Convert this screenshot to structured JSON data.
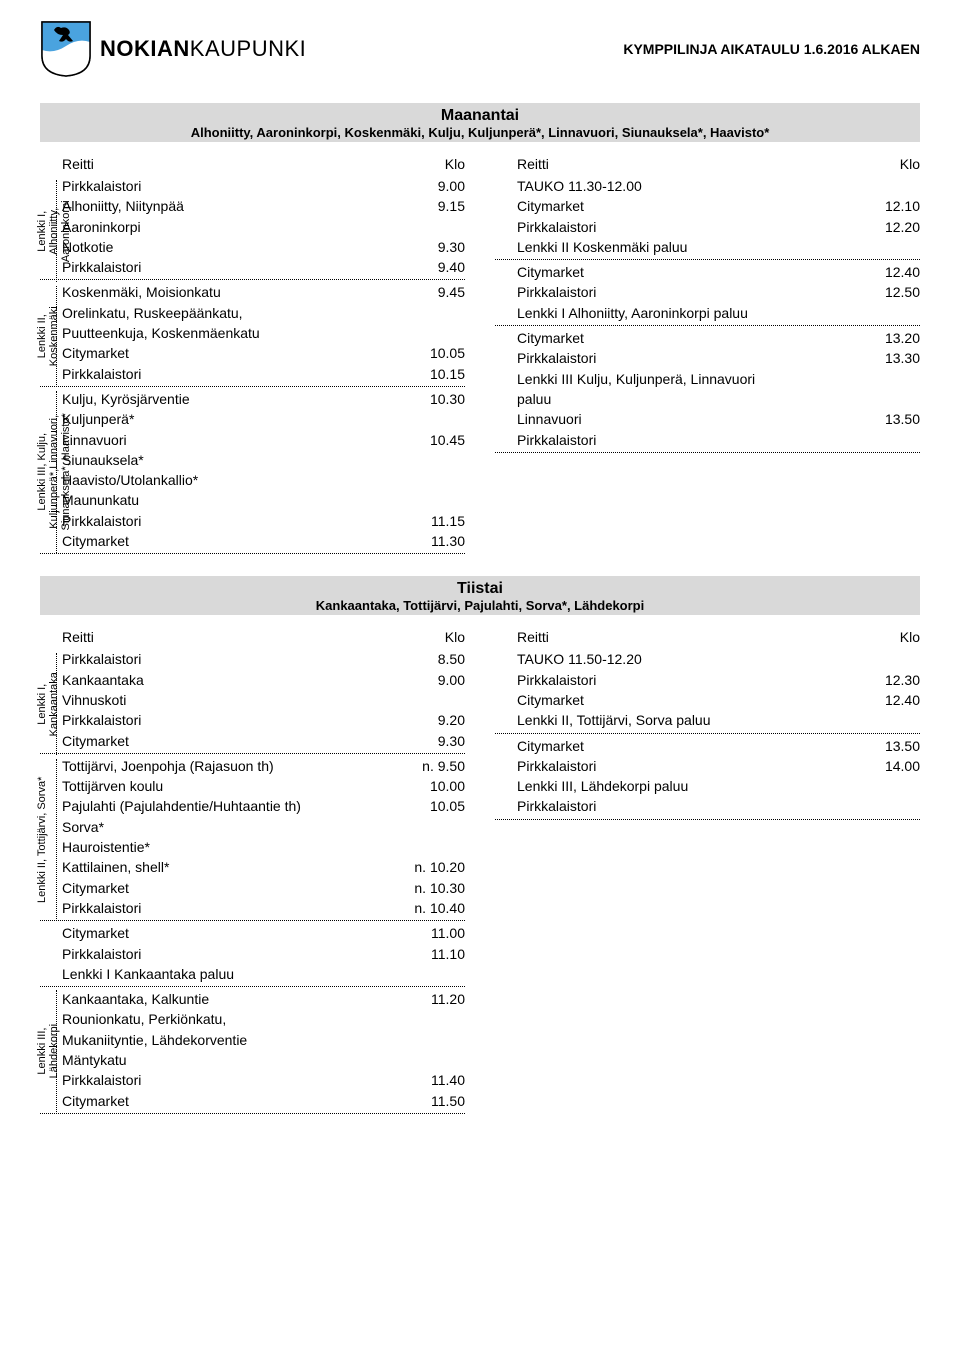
{
  "header": {
    "brand_strong": "NOKIAN",
    "brand_light": "KAUPUNKI",
    "right_text": "KYMPPILINJA AIKATAULU 1.6.2016 ALKAEN"
  },
  "days": [
    {
      "title": "Maanantai",
      "subtitle": "Alhoniitty, Aaroninkorpi, Koskenmäki, Kulju, Kuljunperä*, Linnavuori, Siunauksela*, Haavisto*",
      "left": {
        "col_hdr_l": "Reitti",
        "col_hdr_r": "Klo",
        "groups": [
          {
            "label_lines": [
              "Lenkki I,",
              "Alhoniitty,",
              "Aaroninkorpi"
            ],
            "rows": [
              {
                "s": "Pirkkalaistori",
                "t": "9.00"
              },
              {
                "s": "Alhoniitty, Niitynpää",
                "t": "9.15"
              },
              {
                "s": "Aaroninkorpi",
                "t": ""
              },
              {
                "s": "Notkotie",
                "t": "9.30"
              },
              {
                "s": "Pirkkalaistori",
                "t": "9.40"
              }
            ]
          },
          {
            "label_lines": [
              "Lenkki II,",
              "Koskenmäki"
            ],
            "rows": [
              {
                "s": "Koskenmäki, Moisionkatu",
                "t": "9.45"
              },
              {
                "s": "Orelinkatu, Ruskeepäänkatu,",
                "t": ""
              },
              {
                "s": "Puutteenkuja, Koskenmäenkatu",
                "t": ""
              },
              {
                "s": "Citymarket",
                "t": "10.05"
              },
              {
                "s": "Pirkkalaistori",
                "t": "10.15"
              }
            ]
          },
          {
            "label_lines": [
              "Lenkki III, Kulju,",
              "Kuljunperä*,Linnavuori,",
              "Siunauksela*, Haavisto*"
            ],
            "rows": [
              {
                "s": "Kulju, Kyrösjärventie",
                "t": "10.30"
              },
              {
                "s": "Kuljunperä*",
                "t": ""
              },
              {
                "s": "Linnavuori",
                "t": "10.45"
              },
              {
                "s": "Siunauksela*",
                "t": ""
              },
              {
                "s": "Haavisto/Utolankallio*",
                "t": ""
              },
              {
                "s": "Maununkatu",
                "t": ""
              },
              {
                "s": "Pirkkalaistori",
                "t": "11.15"
              },
              {
                "s": "Citymarket",
                "t": "11.30"
              }
            ]
          }
        ]
      },
      "right": {
        "col_hdr_l": "Reitti",
        "col_hdr_r": "Klo",
        "groups": [
          {
            "label_lines": [],
            "rows": [
              {
                "s": "TAUKO 11.30-12.00",
                "t": ""
              },
              {
                "s": "Citymarket",
                "t": "12.10"
              },
              {
                "s": "Pirkkalaistori",
                "t": "12.20"
              },
              {
                "s": "Lenkki II Koskenmäki paluu",
                "t": ""
              }
            ]
          },
          {
            "label_lines": [],
            "rows": [
              {
                "s": "Citymarket",
                "t": "12.40"
              },
              {
                "s": "Pirkkalaistori",
                "t": "12.50"
              },
              {
                "s": "Lenkki I Alhoniitty, Aaroninkorpi paluu",
                "t": ""
              }
            ]
          },
          {
            "label_lines": [],
            "rows": [
              {
                "s": "Citymarket",
                "t": "13.20"
              },
              {
                "s": "Pirkkalaistori",
                "t": "13.30"
              },
              {
                "s": "Lenkki III Kulju, Kuljunperä, Linnavuori",
                "t": ""
              },
              {
                "s": "paluu",
                "t": ""
              },
              {
                "s": "Linnavuori",
                "t": "13.50"
              },
              {
                "s": "Pirkkalaistori",
                "t": ""
              }
            ]
          }
        ]
      }
    },
    {
      "title": "Tiistai",
      "subtitle": "Kankaantaka, Tottijärvi, Pajulahti, Sorva*, Lähdekorpi",
      "left": {
        "col_hdr_l": "Reitti",
        "col_hdr_r": "Klo",
        "groups": [
          {
            "label_lines": [
              "Lenkki I,",
              "Kankaantaka"
            ],
            "rows": [
              {
                "s": "Pirkkalaistori",
                "t": "8.50"
              },
              {
                "s": "Kankaantaka",
                "t": "9.00"
              },
              {
                "s": "Vihnuskoti",
                "t": ""
              },
              {
                "s": "Pirkkalaistori",
                "t": "9.20"
              },
              {
                "s": "Citymarket",
                "t": "9.30"
              }
            ]
          },
          {
            "label_lines": [
              "Lenkki II, Tottijärvi, Sorva*"
            ],
            "rows": [
              {
                "s": "Tottijärvi, Joenpohja (Rajasuon th)",
                "t": "n. 9.50"
              },
              {
                "s": "Tottijärven koulu",
                "t": "10.00"
              },
              {
                "s": "Pajulahti (Pajulahdentie/Huhtaantie th)",
                "t": "10.05"
              },
              {
                "s": "Sorva*",
                "t": ""
              },
              {
                "s": "Hauroistentie*",
                "t": ""
              },
              {
                "s": "Kattilainen, shell*",
                "t": "n. 10.20"
              },
              {
                "s": "Citymarket",
                "t": "n. 10.30"
              },
              {
                "s": "Pirkkalaistori",
                "t": "n. 10.40"
              }
            ]
          },
          {
            "label_lines": [],
            "rows": [
              {
                "s": "Citymarket",
                "t": "11.00"
              },
              {
                "s": "Pirkkalaistori",
                "t": "11.10"
              },
              {
                "s": "Lenkki I Kankaantaka paluu",
                "t": ""
              }
            ]
          },
          {
            "label_lines": [
              "Lenkki III,",
              "Lähdekorpi"
            ],
            "rows": [
              {
                "s": "Kankaantaka, Kalkuntie",
                "t": "11.20"
              },
              {
                "s": "Rounionkatu, Perkiönkatu,",
                "t": ""
              },
              {
                "s": "Mukaniityntie, Lähdekorventie",
                "t": ""
              },
              {
                "s": "Mäntykatu",
                "t": ""
              },
              {
                "s": "Pirkkalaistori",
                "t": "11.40"
              },
              {
                "s": "Citymarket",
                "t": "11.50"
              }
            ]
          }
        ]
      },
      "right": {
        "col_hdr_l": "Reitti",
        "col_hdr_r": "Klo",
        "groups": [
          {
            "label_lines": [],
            "rows": [
              {
                "s": "TAUKO 11.50-12.20",
                "t": ""
              },
              {
                "s": "Pirkkalaistori",
                "t": "12.30"
              },
              {
                "s": "Citymarket",
                "t": "12.40"
              },
              {
                "s": "Lenkki II, Tottijärvi, Sorva paluu",
                "t": ""
              }
            ]
          },
          {
            "label_lines": [],
            "rows": [
              {
                "s": "Citymarket",
                "t": "13.50"
              },
              {
                "s": "Pirkkalaistori",
                "t": "14.00"
              },
              {
                "s": "Lenkki III, Lähdekorpi paluu",
                "t": ""
              },
              {
                "s": "Pirkkalaistori",
                "t": ""
              }
            ]
          }
        ]
      }
    }
  ],
  "row_h": 20.3
}
